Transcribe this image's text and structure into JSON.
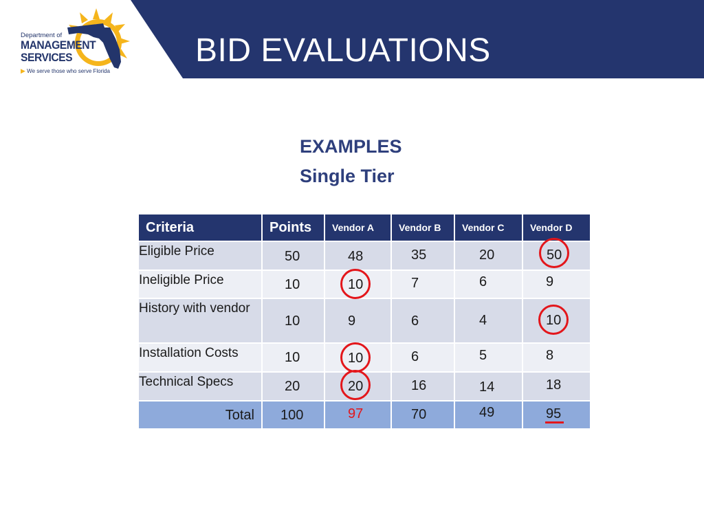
{
  "logo": {
    "dept": "Department of",
    "line1": "MANAGEMENT",
    "line2": "SERVICES",
    "tagline": "We serve those who serve Florida"
  },
  "header": {
    "title": "BID EVALUATIONS",
    "bar_color": "#24356e"
  },
  "subtitle": {
    "line1": "EXAMPLES",
    "line2": "Single Tier"
  },
  "table": {
    "columns": [
      "Criteria",
      "Points",
      "Vendor A",
      "Vendor B",
      "Vendor C",
      "Vendor D"
    ],
    "rows": [
      {
        "criteria": "Eligible Price",
        "points": "50",
        "a": "48",
        "b": "35",
        "c": "20",
        "d": "50"
      },
      {
        "criteria": "Ineligible Price",
        "points": "10",
        "a": "10",
        "b": "7",
        "c": "6",
        "d": "9"
      },
      {
        "criteria": "History with vendor",
        "points": "10",
        "a": "9",
        "b": "6",
        "c": "4",
        "d": "10"
      },
      {
        "criteria": "Installation Costs",
        "points": "10",
        "a": "10",
        "b": "6",
        "c": "5",
        "d": "8"
      },
      {
        "criteria": "Technical Specs",
        "points": "20",
        "a": "20",
        "b": "16",
        "c": "14",
        "d": "18"
      }
    ],
    "total": {
      "label": "Total",
      "points": "100",
      "a": "97",
      "b": "70",
      "c": "49",
      "d": "95"
    },
    "highlight_color": "#e3161b"
  }
}
